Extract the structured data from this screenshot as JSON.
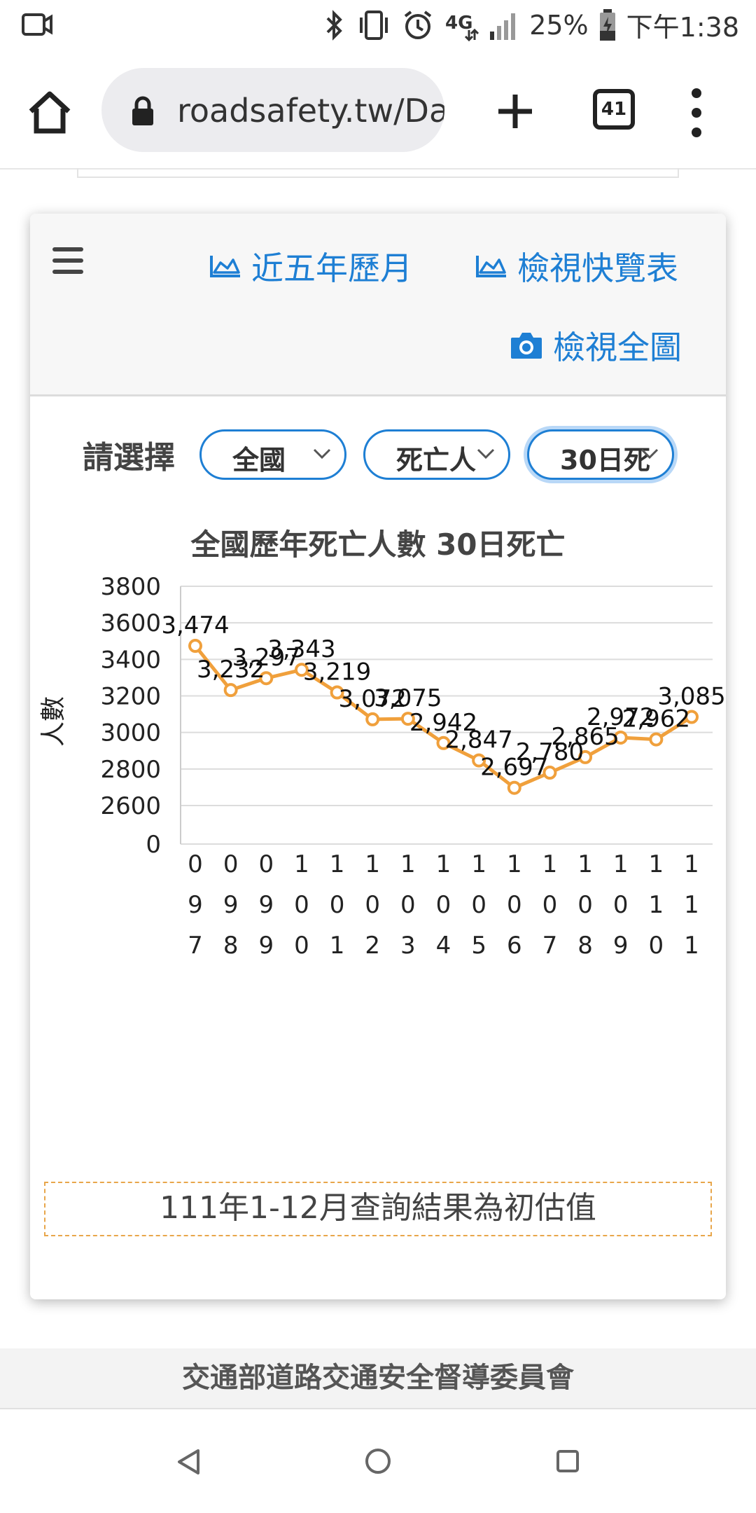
{
  "status_bar": {
    "battery": "25%",
    "time": "下午1:38",
    "icons": [
      "video-camera-icon",
      "bluetooth-icon",
      "vibrate-icon",
      "alarm-icon",
      "data-4g-icon",
      "signal-icon",
      "battery-charging-icon"
    ]
  },
  "browser": {
    "url": "roadsafety.tw/Da",
    "tab_count": "41",
    "icons": [
      "home-icon",
      "lock-icon",
      "plus-icon",
      "more-vert-icon"
    ]
  },
  "card": {
    "links": {
      "five_year": "近五年歷月",
      "quick_view": "檢視快覽表",
      "full_view": "檢視全圖"
    },
    "select_label": "請選擇",
    "selects": {
      "region": "全國",
      "type": "死亡人",
      "period": "30日死"
    },
    "note": "111年1-12月查詢結果為初估值"
  },
  "chart_data": {
    "type": "line",
    "title": "全國歷年死亡人數 30日死亡",
    "ylabel": "人數",
    "xlabel": "",
    "ylim": [
      0,
      3800
    ],
    "yticks": [
      "3800",
      "3600",
      "3400",
      "3200",
      "3000",
      "2800",
      "2600",
      "0"
    ],
    "axis_break": "0 to 2600 compressed",
    "categories": [
      "097",
      "098",
      "099",
      "100",
      "101",
      "102",
      "103",
      "104",
      "105",
      "106",
      "107",
      "108",
      "109",
      "110",
      "111"
    ],
    "series": [
      {
        "values": [
          3474,
          3232,
          3297,
          3343,
          3219,
          3072,
          3075,
          2942,
          2847,
          2697,
          2780,
          2865,
          2972,
          2962,
          3085
        ],
        "labels": [
          "3,474",
          "3,232",
          "3,297",
          "3,343",
          "3,219",
          "3,072",
          "3,075",
          "2,942",
          "2,847",
          "2,697",
          "2,780",
          "2,865",
          "2,972",
          "2,962",
          "3,085"
        ],
        "color": "#f0a03c"
      }
    ],
    "grid": true,
    "legend": "none"
  },
  "footer": {
    "org": "交通部道路交通安全督導委員會"
  },
  "nav": {
    "icons": [
      "back-triangle-icon",
      "home-circle-icon",
      "recents-square-icon"
    ]
  }
}
